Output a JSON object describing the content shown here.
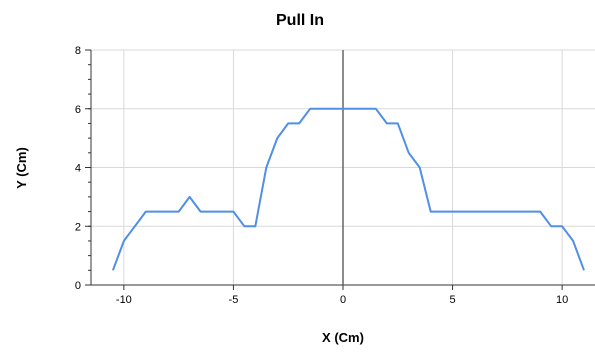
{
  "chart_data": {
    "type": "line",
    "title": "Pull In",
    "xlabel": "X (Cm)",
    "ylabel": "Y (Cm)",
    "xlim": [
      -11.5,
      11.5
    ],
    "ylim": [
      0,
      8
    ],
    "grid": true,
    "x_ticks": [
      -10,
      -5,
      0,
      5,
      10
    ],
    "x_tick_labels": [
      "-10",
      "-5",
      "0",
      "5",
      "10"
    ],
    "y_ticks": [
      0,
      2,
      4,
      6,
      8
    ],
    "y_tick_labels": [
      "0",
      "2",
      "4",
      "6",
      "8"
    ],
    "series": [
      {
        "color": "#4f8fe6",
        "x": [
          -10.5,
          -10,
          -9,
          -7.5,
          -7,
          -6.5,
          -5,
          -4.5,
          -4,
          -3.5,
          -3,
          -2.5,
          -2,
          -1.5,
          0,
          1.5,
          2,
          2.5,
          3,
          3.5,
          4,
          9,
          9.5,
          10,
          10.5,
          11
        ],
        "y": [
          0.5,
          1.5,
          2.5,
          2.5,
          3,
          2.5,
          2.5,
          2,
          2,
          4,
          5,
          5.5,
          5.5,
          6,
          6,
          6,
          5.5,
          5.5,
          4.5,
          4,
          2.5,
          2.5,
          2,
          2,
          1.5,
          0.5
        ]
      }
    ]
  }
}
